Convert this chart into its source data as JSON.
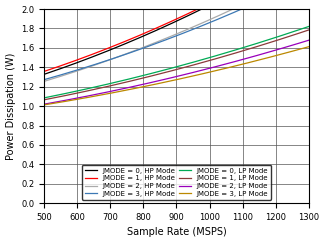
{
  "xlabel": "Sample Rate (MSPS)",
  "ylabel": "Power Dissipation (W)",
  "xlim": [
    500,
    1300
  ],
  "ylim": [
    0,
    2
  ],
  "xticks": [
    500,
    600,
    700,
    800,
    900,
    1000,
    1100,
    1200,
    1300
  ],
  "yticks": [
    0,
    0.2,
    0.4,
    0.6,
    0.8,
    1.0,
    1.2,
    1.4,
    1.6,
    1.8,
    2.0
  ],
  "lines": [
    {
      "label": "JMODE = 0, HP Mode",
      "color": "#000000",
      "style": "-",
      "a": 5.5e-07,
      "b": 0.0006,
      "c": 0.89
    },
    {
      "label": "JMODE = 1, HP Mode",
      "color": "#ff0000",
      "style": "-",
      "a": 5.5e-07,
      "b": 0.00058,
      "c": 0.93
    },
    {
      "label": "JMODE = 2, HP Mode",
      "color": "#aaaaaa",
      "style": "-",
      "a": 5e-07,
      "b": 0.00052,
      "c": 0.87
    },
    {
      "label": "JMODE = 3, HP Mode",
      "color": "#3c78b4",
      "style": "-",
      "a": 4.5e-07,
      "b": 0.0005,
      "c": 0.91
    },
    {
      "label": "JMODE = 0, LP Mode",
      "color": "#00aa55",
      "style": "-",
      "a": 3e-07,
      "b": 0.00038,
      "c": 0.82
    },
    {
      "label": "JMODE = 1, LP Mode",
      "color": "#8b3a3a",
      "style": "-",
      "a": 3e-07,
      "b": 0.00036,
      "c": 0.81
    },
    {
      "label": "JMODE = 2, LP Mode",
      "color": "#9900bb",
      "style": "-",
      "a": 2.8e-07,
      "b": 0.00032,
      "c": 0.79
    },
    {
      "label": "JMODE = 3, LP Mode",
      "color": "#bb8800",
      "style": "-",
      "a": 2.5e-07,
      "b": 0.0003,
      "c": 0.8
    }
  ],
  "legend_ncol": 2,
  "legend_fontsize": 5.0,
  "axis_fontsize": 7,
  "tick_fontsize": 6,
  "fig_width": 3.25,
  "fig_height": 2.43,
  "dpi": 100
}
